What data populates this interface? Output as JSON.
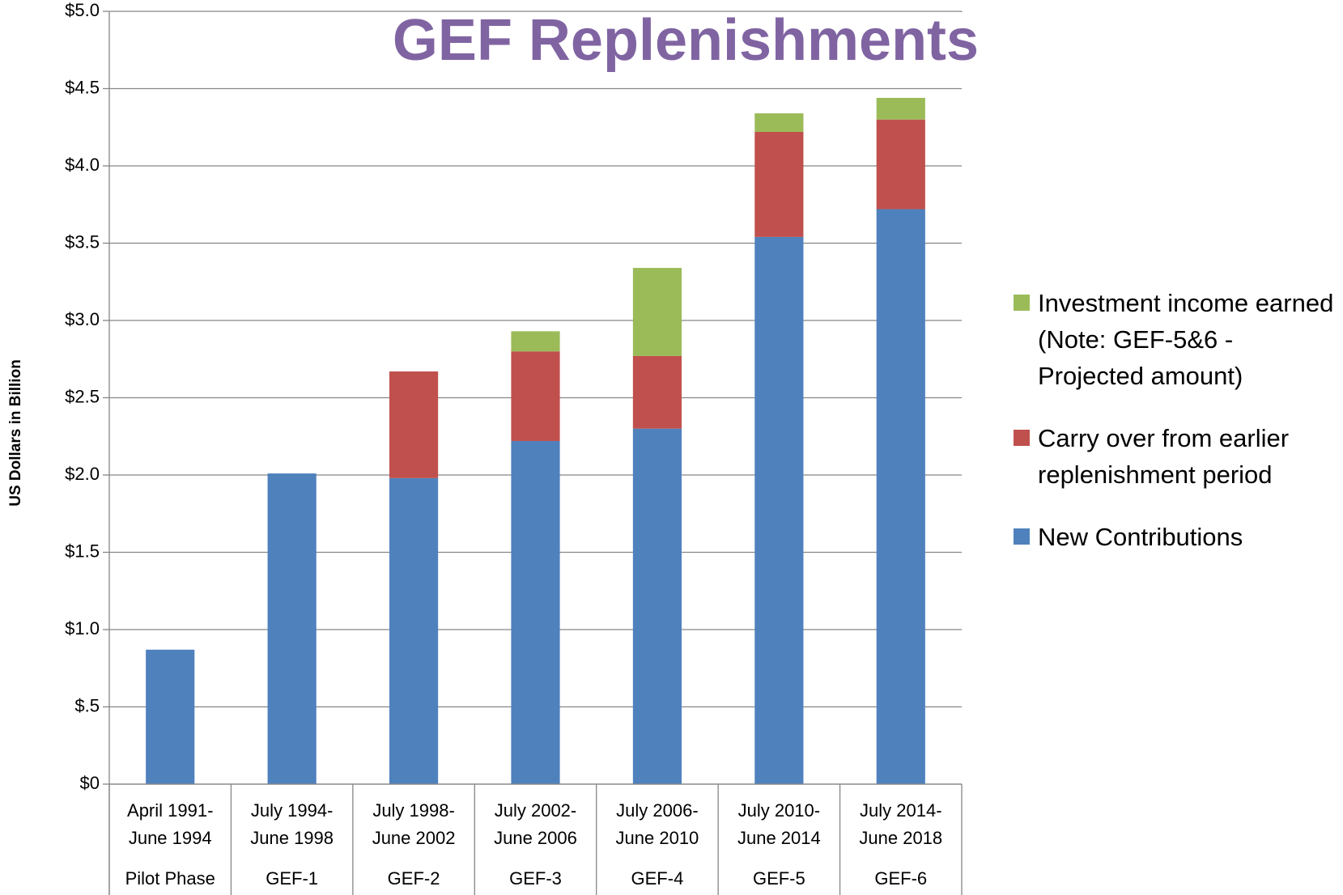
{
  "chart_data": {
    "type": "bar",
    "stacked": true,
    "title": "GEF Replenishments",
    "y_label": "US Dollars in Billion",
    "categories": [
      "Pilot Phase",
      "GEF-1",
      "GEF-2",
      "GEF-3",
      "GEF-4",
      "GEF-5",
      "GEF-6"
    ],
    "periods": [
      [
        "April 1991-",
        "June 1994"
      ],
      [
        "July 1994-",
        "June 1998"
      ],
      [
        "July 1998-",
        "June 2002"
      ],
      [
        "July 2002-",
        "June 2006"
      ],
      [
        "July 2006-",
        "June 2010"
      ],
      [
        "July 2010-",
        "June 2014"
      ],
      [
        "July 2014-",
        "June 2018"
      ]
    ],
    "series": [
      {
        "name": "New Contributions",
        "color": "#4f81bd",
        "values": [
          0.87,
          2.01,
          1.98,
          2.22,
          2.3,
          3.54,
          3.72
        ]
      },
      {
        "name": "Carry over from earlier replenishment period",
        "color": "#c0504d",
        "values": [
          0,
          0,
          0.69,
          0.58,
          0.47,
          0.68,
          0.58
        ]
      },
      {
        "name": "Investment income earned (Note: GEF-5&6 - Projected amount)",
        "color": "#9bbb59",
        "values": [
          0,
          0,
          0,
          0.13,
          0.57,
          0.12,
          0.14
        ]
      }
    ],
    "ylim": [
      0,
      5
    ],
    "yticks": [
      {
        "value": 0,
        "label": "$0"
      },
      {
        "value": 0.5,
        "label": "$.5"
      },
      {
        "value": 1,
        "label": "$1.0"
      },
      {
        "value": 1.5,
        "label": "$1.5"
      },
      {
        "value": 2,
        "label": "$2.0"
      },
      {
        "value": 2.5,
        "label": "$2.5"
      },
      {
        "value": 3,
        "label": "$3.0"
      },
      {
        "value": 3.5,
        "label": "$3.5"
      },
      {
        "value": 4,
        "label": "$4.0"
      },
      {
        "value": 4.5,
        "label": "$4.5"
      },
      {
        "value": 5,
        "label": "$5.0"
      }
    ],
    "grid": true,
    "legend": "right"
  }
}
